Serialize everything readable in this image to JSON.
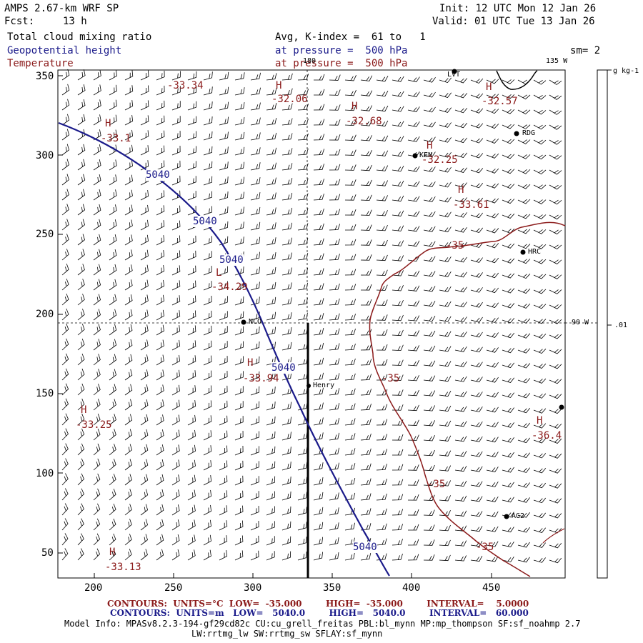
{
  "header": {
    "model": "AMPS 2.67-km WRF SP",
    "fcst_label": "Fcst:",
    "fcst_value": "13 h",
    "init": "Init: 12 UTC Mon 12 Jan 26",
    "valid": "Valid: 01 UTC Tue 13 Jan 26",
    "field1": "Total cloud mixing ratio",
    "field2": "Geopotential height",
    "field3": "Temperature",
    "avg": "Avg, K-index =  61 to   1",
    "pressure_blue": "at pressure =  500 hPa",
    "pressure_red": "at pressure =  500 hPa",
    "sm": "sm= 2"
  },
  "axes": {
    "x_ticks": [
      "200",
      "250",
      "300",
      "350",
      "400",
      "450"
    ],
    "y_ticks": [
      "350",
      "300",
      "250",
      "200",
      "150",
      "100",
      "50"
    ]
  },
  "meridians": {
    "m180": "180",
    "m135": "135 W",
    "m90": "90 W"
  },
  "colorbar": {
    "unit": "g kg-1",
    "tick": ".01"
  },
  "stations": [
    "LVT",
    "RDG",
    "KEN",
    "HRC",
    "NCO",
    "Henry",
    "AG2"
  ],
  "temperature_labels": [
    {
      "hl": "",
      "val": "-33.34"
    },
    {
      "hl": "H",
      "val": "-32.06"
    },
    {
      "hl": "H",
      "val": "-32.68"
    },
    {
      "hl": "H",
      "val": "-32.57"
    },
    {
      "hl": "H",
      "val": "-33.1"
    },
    {
      "hl": "H",
      "val": "-32.25"
    },
    {
      "hl": "H",
      "val": "-33.61"
    },
    {
      "hl": "L",
      "val": "-34.29"
    },
    {
      "hl": "H",
      "val": "-33.94"
    },
    {
      "hl": "H",
      "val": "-33.25"
    },
    {
      "hl": "H",
      "val": "-36.4"
    },
    {
      "hl": "H",
      "val": "-33.13"
    }
  ],
  "contour_labels": {
    "temp": [
      "-35",
      "-35",
      "-35",
      "-35"
    ],
    "height": [
      "5040",
      "5040",
      "5040",
      "5040",
      "5040"
    ]
  },
  "footer": {
    "line1": "CONTOURS:  UNITS=°C  LOW=  -35.000        HIGH=  -35.000        INTERVAL=    5.0000",
    "line2": "CONTOURS:  UNITS=m   LOW=   5040.0        HIGH=   5040.0        INTERVAL=   60.000",
    "model_info": "Model Info: MPASv8.2.3-194-gf29cd82c CU:cu_grell_freitas PBL:bl_mynn MP:mp_thompson SF:sf_noahmp 2.7",
    "model_info2": "LW:rrtmg_lw SW:rrtmg_sw SFLAY:sf_mynn"
  },
  "colors": {
    "height_contour": "#1a1a8a",
    "temp_contour": "#8b1a1a",
    "barbs": "#000000"
  }
}
